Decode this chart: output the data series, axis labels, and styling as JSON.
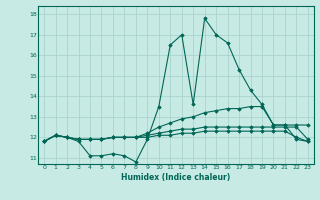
{
  "xlabel": "Humidex (Indice chaleur)",
  "background_color": "#c8eae5",
  "grid_color": "#aad4cf",
  "line_color": "#006655",
  "xlim": [
    -0.5,
    23.5
  ],
  "ylim": [
    10.7,
    18.4
  ],
  "yticks": [
    11,
    12,
    13,
    14,
    15,
    16,
    17,
    18
  ],
  "xticks": [
    0,
    1,
    2,
    3,
    4,
    5,
    6,
    7,
    8,
    9,
    10,
    11,
    12,
    13,
    14,
    15,
    16,
    17,
    18,
    19,
    20,
    21,
    22,
    23
  ],
  "line1_y": [
    11.8,
    12.1,
    12.0,
    11.8,
    11.1,
    11.1,
    11.2,
    11.1,
    10.8,
    11.9,
    13.5,
    16.5,
    17.0,
    13.6,
    17.8,
    17.0,
    16.6,
    15.3,
    14.3,
    13.6,
    12.6,
    12.6,
    11.9,
    11.8
  ],
  "line2_y": [
    11.8,
    12.1,
    12.0,
    11.9,
    11.9,
    11.9,
    12.0,
    12.0,
    12.0,
    12.2,
    12.5,
    12.7,
    12.9,
    13.0,
    13.2,
    13.3,
    13.4,
    13.4,
    13.5,
    13.5,
    12.6,
    12.6,
    12.6,
    12.6
  ],
  "line3_y": [
    11.8,
    12.1,
    12.0,
    11.9,
    11.9,
    11.9,
    12.0,
    12.0,
    12.0,
    12.1,
    12.2,
    12.3,
    12.4,
    12.4,
    12.5,
    12.5,
    12.5,
    12.5,
    12.5,
    12.5,
    12.5,
    12.5,
    12.5,
    11.9
  ],
  "line4_y": [
    11.8,
    12.1,
    12.0,
    11.9,
    11.9,
    11.9,
    12.0,
    12.0,
    12.0,
    12.0,
    12.1,
    12.1,
    12.2,
    12.2,
    12.3,
    12.3,
    12.3,
    12.3,
    12.3,
    12.3,
    12.3,
    12.3,
    12.0,
    11.8
  ]
}
